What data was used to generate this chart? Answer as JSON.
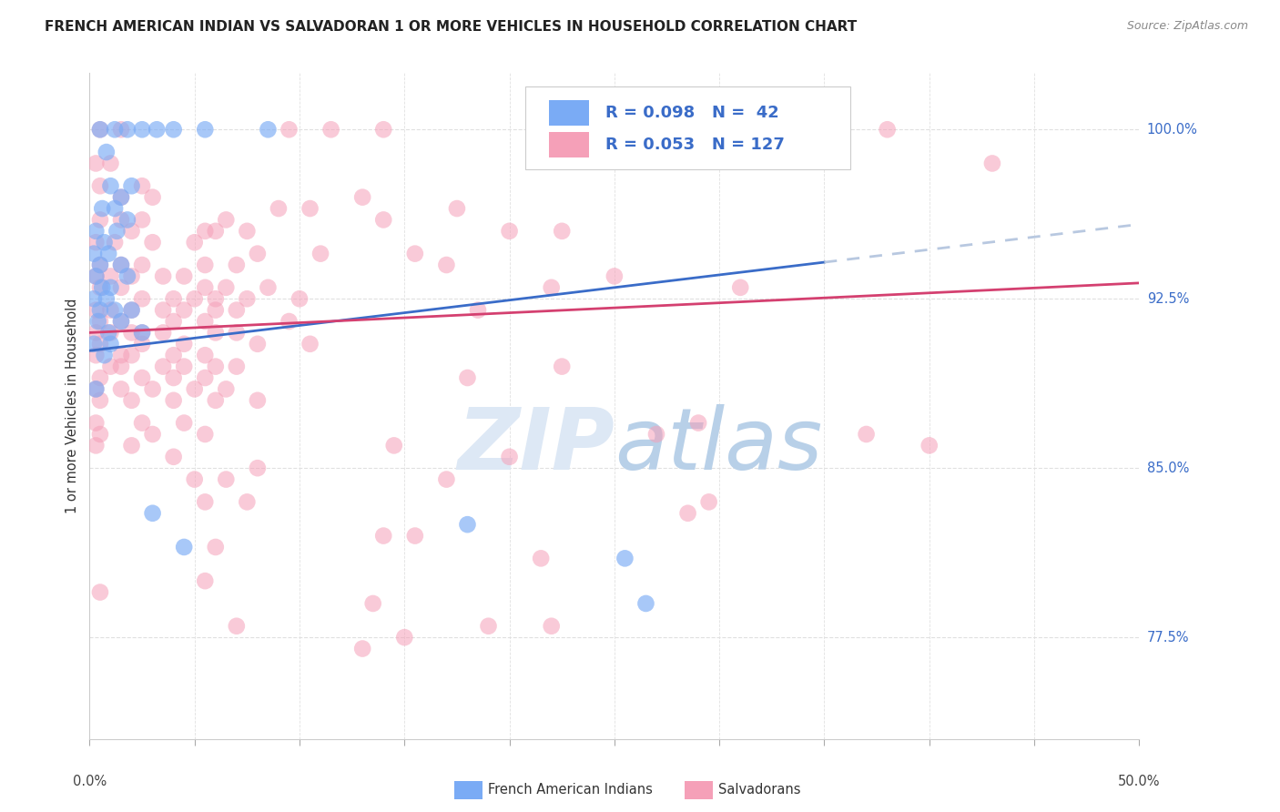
{
  "title": "FRENCH AMERICAN INDIAN VS SALVADORAN 1 OR MORE VEHICLES IN HOUSEHOLD CORRELATION CHART",
  "source": "Source: ZipAtlas.com",
  "ylabel": "1 or more Vehicles in Household",
  "xmin": 0.0,
  "xmax": 50.0,
  "ymin": 73.0,
  "ymax": 102.5,
  "blue_color": "#7aabf5",
  "pink_color": "#f5a0b8",
  "trend_blue_solid_color": "#3a6cc8",
  "trend_blue_dashed_color": "#b8c8e0",
  "trend_pink_color": "#d44070",
  "watermark_zip_color": "#dde8f5",
  "watermark_atlas_color": "#c8d8e8",
  "background_color": "#ffffff",
  "grid_color": "#e0e0e0",
  "blue_trend_x": [
    0.0,
    50.0
  ],
  "blue_trend_y": [
    90.2,
    95.8
  ],
  "blue_dashed_x_start": 35.0,
  "pink_trend_x": [
    0.0,
    50.0
  ],
  "pink_trend_y": [
    91.0,
    93.2
  ],
  "blue_scatter": [
    [
      0.5,
      100.0
    ],
    [
      1.2,
      100.0
    ],
    [
      1.8,
      100.0
    ],
    [
      2.5,
      100.0
    ],
    [
      3.2,
      100.0
    ],
    [
      4.0,
      100.0
    ],
    [
      5.5,
      100.0
    ],
    [
      0.8,
      99.0
    ],
    [
      1.0,
      97.5
    ],
    [
      1.5,
      97.0
    ],
    [
      2.0,
      97.5
    ],
    [
      0.6,
      96.5
    ],
    [
      1.2,
      96.5
    ],
    [
      1.8,
      96.0
    ],
    [
      0.3,
      95.5
    ],
    [
      0.7,
      95.0
    ],
    [
      1.3,
      95.5
    ],
    [
      0.2,
      94.5
    ],
    [
      0.5,
      94.0
    ],
    [
      0.9,
      94.5
    ],
    [
      1.5,
      94.0
    ],
    [
      0.3,
      93.5
    ],
    [
      0.6,
      93.0
    ],
    [
      1.0,
      93.0
    ],
    [
      1.8,
      93.5
    ],
    [
      0.2,
      92.5
    ],
    [
      0.5,
      92.0
    ],
    [
      0.8,
      92.5
    ],
    [
      1.2,
      92.0
    ],
    [
      2.0,
      92.0
    ],
    [
      0.4,
      91.5
    ],
    [
      0.9,
      91.0
    ],
    [
      1.5,
      91.5
    ],
    [
      2.5,
      91.0
    ],
    [
      0.2,
      90.5
    ],
    [
      0.7,
      90.0
    ],
    [
      1.0,
      90.5
    ],
    [
      0.3,
      88.5
    ],
    [
      3.0,
      83.0
    ],
    [
      4.5,
      81.5
    ],
    [
      8.5,
      100.0
    ],
    [
      18.0,
      82.5
    ],
    [
      25.5,
      81.0
    ],
    [
      26.5,
      79.0
    ]
  ],
  "pink_scatter": [
    [
      0.5,
      100.0
    ],
    [
      1.5,
      100.0
    ],
    [
      0.3,
      98.5
    ],
    [
      1.0,
      98.5
    ],
    [
      9.5,
      100.0
    ],
    [
      11.5,
      100.0
    ],
    [
      14.0,
      100.0
    ],
    [
      38.0,
      100.0
    ],
    [
      43.0,
      98.5
    ],
    [
      0.5,
      97.5
    ],
    [
      1.5,
      97.0
    ],
    [
      2.5,
      97.5
    ],
    [
      3.0,
      97.0
    ],
    [
      9.0,
      96.5
    ],
    [
      10.5,
      96.5
    ],
    [
      13.0,
      97.0
    ],
    [
      14.0,
      96.0
    ],
    [
      17.5,
      96.5
    ],
    [
      0.5,
      96.0
    ],
    [
      1.5,
      96.0
    ],
    [
      2.5,
      96.0
    ],
    [
      5.5,
      95.5
    ],
    [
      6.5,
      96.0
    ],
    [
      7.5,
      95.5
    ],
    [
      20.0,
      95.5
    ],
    [
      22.5,
      95.5
    ],
    [
      0.3,
      95.0
    ],
    [
      1.2,
      95.0
    ],
    [
      2.0,
      95.5
    ],
    [
      3.0,
      95.0
    ],
    [
      5.0,
      95.0
    ],
    [
      6.0,
      95.5
    ],
    [
      8.0,
      94.5
    ],
    [
      11.0,
      94.5
    ],
    [
      15.5,
      94.5
    ],
    [
      17.0,
      94.0
    ],
    [
      0.5,
      94.0
    ],
    [
      1.5,
      94.0
    ],
    [
      2.5,
      94.0
    ],
    [
      5.5,
      94.0
    ],
    [
      7.0,
      94.0
    ],
    [
      0.3,
      93.5
    ],
    [
      1.0,
      93.5
    ],
    [
      2.0,
      93.5
    ],
    [
      3.5,
      93.5
    ],
    [
      4.5,
      93.5
    ],
    [
      5.5,
      93.0
    ],
    [
      6.5,
      93.0
    ],
    [
      8.5,
      93.0
    ],
    [
      22.0,
      93.0
    ],
    [
      25.0,
      93.5
    ],
    [
      0.5,
      93.0
    ],
    [
      1.5,
      93.0
    ],
    [
      2.5,
      92.5
    ],
    [
      4.0,
      92.5
    ],
    [
      5.0,
      92.5
    ],
    [
      6.0,
      92.5
    ],
    [
      7.5,
      92.5
    ],
    [
      10.0,
      92.5
    ],
    [
      31.0,
      93.0
    ],
    [
      0.3,
      92.0
    ],
    [
      1.0,
      92.0
    ],
    [
      2.0,
      92.0
    ],
    [
      3.5,
      92.0
    ],
    [
      4.5,
      92.0
    ],
    [
      6.0,
      92.0
    ],
    [
      7.0,
      92.0
    ],
    [
      9.5,
      91.5
    ],
    [
      18.5,
      92.0
    ],
    [
      0.5,
      91.5
    ],
    [
      1.5,
      91.5
    ],
    [
      2.5,
      91.0
    ],
    [
      4.0,
      91.5
    ],
    [
      5.5,
      91.5
    ],
    [
      7.0,
      91.0
    ],
    [
      0.3,
      91.0
    ],
    [
      1.0,
      91.0
    ],
    [
      2.0,
      91.0
    ],
    [
      3.5,
      91.0
    ],
    [
      4.5,
      90.5
    ],
    [
      6.0,
      91.0
    ],
    [
      8.0,
      90.5
    ],
    [
      10.5,
      90.5
    ],
    [
      0.5,
      90.5
    ],
    [
      1.5,
      90.0
    ],
    [
      2.5,
      90.5
    ],
    [
      4.0,
      90.0
    ],
    [
      5.5,
      90.0
    ],
    [
      0.3,
      90.0
    ],
    [
      1.0,
      89.5
    ],
    [
      2.0,
      90.0
    ],
    [
      3.5,
      89.5
    ],
    [
      4.5,
      89.5
    ],
    [
      6.0,
      89.5
    ],
    [
      0.5,
      89.0
    ],
    [
      1.5,
      89.5
    ],
    [
      2.5,
      89.0
    ],
    [
      4.0,
      89.0
    ],
    [
      5.5,
      89.0
    ],
    [
      7.0,
      89.5
    ],
    [
      18.0,
      89.0
    ],
    [
      22.5,
      89.5
    ],
    [
      0.3,
      88.5
    ],
    [
      1.5,
      88.5
    ],
    [
      3.0,
      88.5
    ],
    [
      5.0,
      88.5
    ],
    [
      6.5,
      88.5
    ],
    [
      0.5,
      88.0
    ],
    [
      2.0,
      88.0
    ],
    [
      4.0,
      88.0
    ],
    [
      6.0,
      88.0
    ],
    [
      8.0,
      88.0
    ],
    [
      27.0,
      86.5
    ],
    [
      29.0,
      87.0
    ],
    [
      37.0,
      86.5
    ],
    [
      40.0,
      86.0
    ],
    [
      0.3,
      87.0
    ],
    [
      2.5,
      87.0
    ],
    [
      4.5,
      87.0
    ],
    [
      0.5,
      86.5
    ],
    [
      3.0,
      86.5
    ],
    [
      5.5,
      86.5
    ],
    [
      14.5,
      86.0
    ],
    [
      0.3,
      86.0
    ],
    [
      2.0,
      86.0
    ],
    [
      4.0,
      85.5
    ],
    [
      20.0,
      85.5
    ],
    [
      5.0,
      84.5
    ],
    [
      6.5,
      84.5
    ],
    [
      8.0,
      85.0
    ],
    [
      17.0,
      84.5
    ],
    [
      5.5,
      83.5
    ],
    [
      7.5,
      83.5
    ],
    [
      28.5,
      83.0
    ],
    [
      29.5,
      83.5
    ],
    [
      14.0,
      82.0
    ],
    [
      15.5,
      82.0
    ],
    [
      6.0,
      81.5
    ],
    [
      21.5,
      81.0
    ],
    [
      5.5,
      80.0
    ],
    [
      0.5,
      79.5
    ],
    [
      13.5,
      79.0
    ],
    [
      7.0,
      78.0
    ],
    [
      19.0,
      78.0
    ],
    [
      22.0,
      78.0
    ],
    [
      13.0,
      77.0
    ],
    [
      15.0,
      77.5
    ]
  ]
}
